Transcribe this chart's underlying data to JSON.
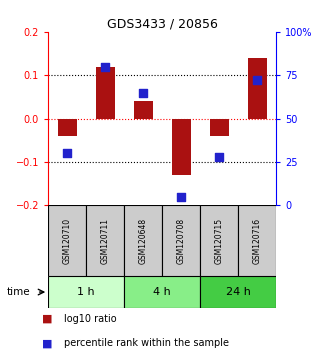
{
  "title": "GDS3433 / 20856",
  "samples": [
    "GSM120710",
    "GSM120711",
    "GSM120648",
    "GSM120708",
    "GSM120715",
    "GSM120716"
  ],
  "log10_ratio": [
    -0.04,
    0.12,
    0.04,
    -0.13,
    -0.04,
    0.14
  ],
  "percentile_rank": [
    30,
    80,
    65,
    5,
    28,
    72
  ],
  "bar_color": "#AA1111",
  "dot_color": "#2222CC",
  "ylim_left": [
    -0.2,
    0.2
  ],
  "ylim_right": [
    0,
    100
  ],
  "yticks_left": [
    -0.2,
    -0.1,
    0.0,
    0.1,
    0.2
  ],
  "yticks_right": [
    0,
    25,
    50,
    75,
    100
  ],
  "yticklabels_right": [
    "0",
    "25",
    "50",
    "75",
    "100%"
  ],
  "time_groups": [
    {
      "label": "1 h",
      "indices": [
        0,
        1
      ],
      "color": "#CCFFCC"
    },
    {
      "label": "4 h",
      "indices": [
        2,
        3
      ],
      "color": "#88EE88"
    },
    {
      "label": "24 h",
      "indices": [
        4,
        5
      ],
      "color": "#44CC44"
    }
  ],
  "time_label": "time",
  "legend_items": [
    {
      "label": "log10 ratio",
      "color": "#AA1111"
    },
    {
      "label": "percentile rank within the sample",
      "color": "#2222CC"
    }
  ],
  "sample_box_color": "#CCCCCC",
  "bar_width": 0.5,
  "dot_size": 30
}
